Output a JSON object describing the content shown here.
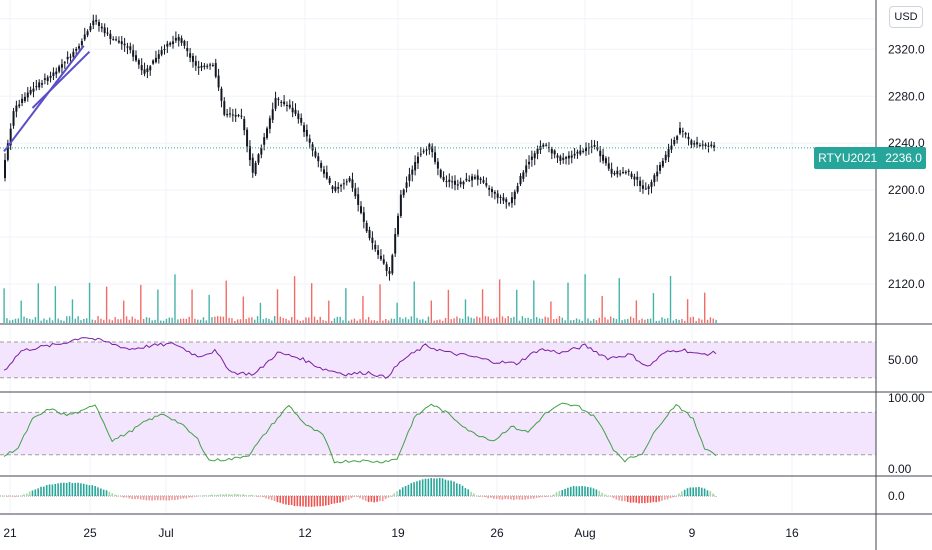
{
  "currency_button": "USD",
  "price_tag": {
    "symbol": "RTYU2021",
    "price": "2236.0",
    "color": "#26a69a"
  },
  "colors": {
    "up": "#26a69a",
    "down": "#ef5350",
    "candle": "#131722",
    "rsi": "#7b1fa2",
    "stoch": "#43a047",
    "band": "#f3e5fd",
    "trend": "#5b4ec9"
  },
  "chart_data": [
    {
      "type": "candlestick",
      "title": "",
      "price_axis": {
        "ticks": [
          "2320.0",
          "2280.0",
          "2240.0",
          "2200.0",
          "2160.0",
          "2120.0"
        ],
        "values": [
          2320,
          2280,
          2240,
          2200,
          2160,
          2120
        ],
        "ylim": [
          2086,
          2362
        ]
      },
      "time_axis": {
        "labels": [
          "21",
          "25",
          "Jul",
          "12",
          "19",
          "26",
          "Aug",
          "9",
          "16"
        ]
      },
      "last_price": 2236.0,
      "price_path": [
        {
          "t": 0,
          "p": 2210
        },
        {
          "t": 4,
          "p": 2268
        },
        {
          "t": 10,
          "p": 2285
        },
        {
          "t": 18,
          "p": 2300
        },
        {
          "t": 26,
          "p": 2320
        },
        {
          "t": 32,
          "p": 2345
        },
        {
          "t": 38,
          "p": 2330
        },
        {
          "t": 44,
          "p": 2322
        },
        {
          "t": 50,
          "p": 2300
        },
        {
          "t": 56,
          "p": 2320
        },
        {
          "t": 62,
          "p": 2330
        },
        {
          "t": 68,
          "p": 2305
        },
        {
          "t": 74,
          "p": 2308
        },
        {
          "t": 78,
          "p": 2265
        },
        {
          "t": 84,
          "p": 2262
        },
        {
          "t": 88,
          "p": 2215
        },
        {
          "t": 92,
          "p": 2245
        },
        {
          "t": 96,
          "p": 2278
        },
        {
          "t": 100,
          "p": 2272
        },
        {
          "t": 104,
          "p": 2262
        },
        {
          "t": 110,
          "p": 2228
        },
        {
          "t": 116,
          "p": 2200
        },
        {
          "t": 122,
          "p": 2210
        },
        {
          "t": 128,
          "p": 2165
        },
        {
          "t": 132,
          "p": 2145
        },
        {
          "t": 136,
          "p": 2128
        },
        {
          "t": 140,
          "p": 2195
        },
        {
          "t": 146,
          "p": 2230
        },
        {
          "t": 150,
          "p": 2238
        },
        {
          "t": 154,
          "p": 2210
        },
        {
          "t": 160,
          "p": 2205
        },
        {
          "t": 166,
          "p": 2212
        },
        {
          "t": 172,
          "p": 2198
        },
        {
          "t": 178,
          "p": 2188
        },
        {
          "t": 184,
          "p": 2222
        },
        {
          "t": 190,
          "p": 2240
        },
        {
          "t": 196,
          "p": 2225
        },
        {
          "t": 202,
          "p": 2232
        },
        {
          "t": 208,
          "p": 2238
        },
        {
          "t": 214,
          "p": 2215
        },
        {
          "t": 220,
          "p": 2215
        },
        {
          "t": 226,
          "p": 2200
        },
        {
          "t": 232,
          "p": 2225
        },
        {
          "t": 238,
          "p": 2252
        },
        {
          "t": 242,
          "p": 2240
        },
        {
          "t": 247,
          "p": 2238
        },
        {
          "t": 250,
          "p": 2236
        }
      ],
      "trend_channel": [
        [
          {
            "t": 0,
            "p": 2233
          },
          {
            "t": 28,
            "p": 2323
          }
        ],
        [
          {
            "t": 10,
            "p": 2270
          },
          {
            "t": 30,
            "p": 2318
          }
        ]
      ]
    },
    {
      "type": "bar",
      "title": "Volume",
      "note": "volume histogram, green up / red down, no value axis"
    },
    {
      "type": "line",
      "title": "",
      "axis": {
        "ticks": [
          "50.00"
        ],
        "values": [
          50
        ],
        "ylim": [
          14,
          88
        ]
      },
      "band": [
        30,
        70
      ],
      "path": [
        {
          "t": 0,
          "p": 38
        },
        {
          "t": 6,
          "p": 60
        },
        {
          "t": 12,
          "p": 64
        },
        {
          "t": 20,
          "p": 68
        },
        {
          "t": 28,
          "p": 76
        },
        {
          "t": 36,
          "p": 70
        },
        {
          "t": 44,
          "p": 62
        },
        {
          "t": 52,
          "p": 66
        },
        {
          "t": 60,
          "p": 68
        },
        {
          "t": 68,
          "p": 54
        },
        {
          "t": 74,
          "p": 60
        },
        {
          "t": 80,
          "p": 36
        },
        {
          "t": 88,
          "p": 34
        },
        {
          "t": 96,
          "p": 58
        },
        {
          "t": 104,
          "p": 52
        },
        {
          "t": 112,
          "p": 40
        },
        {
          "t": 120,
          "p": 34
        },
        {
          "t": 128,
          "p": 36
        },
        {
          "t": 134,
          "p": 30
        },
        {
          "t": 140,
          "p": 50
        },
        {
          "t": 148,
          "p": 66
        },
        {
          "t": 156,
          "p": 58
        },
        {
          "t": 164,
          "p": 54
        },
        {
          "t": 172,
          "p": 48
        },
        {
          "t": 180,
          "p": 46
        },
        {
          "t": 188,
          "p": 62
        },
        {
          "t": 196,
          "p": 58
        },
        {
          "t": 204,
          "p": 66
        },
        {
          "t": 212,
          "p": 52
        },
        {
          "t": 220,
          "p": 56
        },
        {
          "t": 226,
          "p": 42
        },
        {
          "t": 232,
          "p": 58
        },
        {
          "t": 238,
          "p": 62
        },
        {
          "t": 244,
          "p": 56
        },
        {
          "t": 250,
          "p": 58
        }
      ]
    },
    {
      "type": "line",
      "title": "",
      "axis": {
        "ticks": [
          "100.00",
          "0.00"
        ],
        "values": [
          100,
          0
        ],
        "ylim": [
          -10,
          106
        ]
      },
      "band": [
        20,
        80
      ],
      "path": [
        {
          "t": 0,
          "p": 18
        },
        {
          "t": 5,
          "p": 30
        },
        {
          "t": 10,
          "p": 70
        },
        {
          "t": 16,
          "p": 85
        },
        {
          "t": 22,
          "p": 76
        },
        {
          "t": 28,
          "p": 82
        },
        {
          "t": 32,
          "p": 92
        },
        {
          "t": 38,
          "p": 40
        },
        {
          "t": 44,
          "p": 52
        },
        {
          "t": 50,
          "p": 68
        },
        {
          "t": 56,
          "p": 78
        },
        {
          "t": 62,
          "p": 64
        },
        {
          "t": 68,
          "p": 42
        },
        {
          "t": 72,
          "p": 12
        },
        {
          "t": 80,
          "p": 14
        },
        {
          "t": 86,
          "p": 20
        },
        {
          "t": 94,
          "p": 62
        },
        {
          "t": 100,
          "p": 90
        },
        {
          "t": 106,
          "p": 62
        },
        {
          "t": 112,
          "p": 48
        },
        {
          "t": 116,
          "p": 10
        },
        {
          "t": 124,
          "p": 12
        },
        {
          "t": 132,
          "p": 10
        },
        {
          "t": 138,
          "p": 14
        },
        {
          "t": 144,
          "p": 72
        },
        {
          "t": 150,
          "p": 92
        },
        {
          "t": 156,
          "p": 78
        },
        {
          "t": 164,
          "p": 52
        },
        {
          "t": 172,
          "p": 40
        },
        {
          "t": 178,
          "p": 60
        },
        {
          "t": 184,
          "p": 52
        },
        {
          "t": 190,
          "p": 78
        },
        {
          "t": 196,
          "p": 92
        },
        {
          "t": 202,
          "p": 88
        },
        {
          "t": 208,
          "p": 72
        },
        {
          "t": 214,
          "p": 28
        },
        {
          "t": 218,
          "p": 12
        },
        {
          "t": 224,
          "p": 22
        },
        {
          "t": 230,
          "p": 62
        },
        {
          "t": 236,
          "p": 92
        },
        {
          "t": 242,
          "p": 70
        },
        {
          "t": 246,
          "p": 30
        },
        {
          "t": 250,
          "p": 20
        }
      ]
    },
    {
      "type": "area",
      "title": "",
      "axis": {
        "ticks": [
          "0.0"
        ],
        "values": [
          0
        ],
        "ylim": [
          -1,
          1
        ]
      },
      "humps": [
        {
          "from": 6,
          "to": 40,
          "peak": 0.75
        },
        {
          "from": 40,
          "to": 68,
          "peak": -0.25
        },
        {
          "from": 68,
          "to": 90,
          "peak": 0.1
        },
        {
          "from": 90,
          "to": 124,
          "peak": -0.6
        },
        {
          "from": 124,
          "to": 136,
          "peak": -0.35
        },
        {
          "from": 136,
          "to": 166,
          "peak": 1.0
        },
        {
          "from": 166,
          "to": 192,
          "peak": -0.2
        },
        {
          "from": 192,
          "to": 212,
          "peak": 0.55
        },
        {
          "from": 212,
          "to": 236,
          "peak": -0.4
        },
        {
          "from": 236,
          "to": 250,
          "peak": 0.5
        }
      ]
    }
  ]
}
